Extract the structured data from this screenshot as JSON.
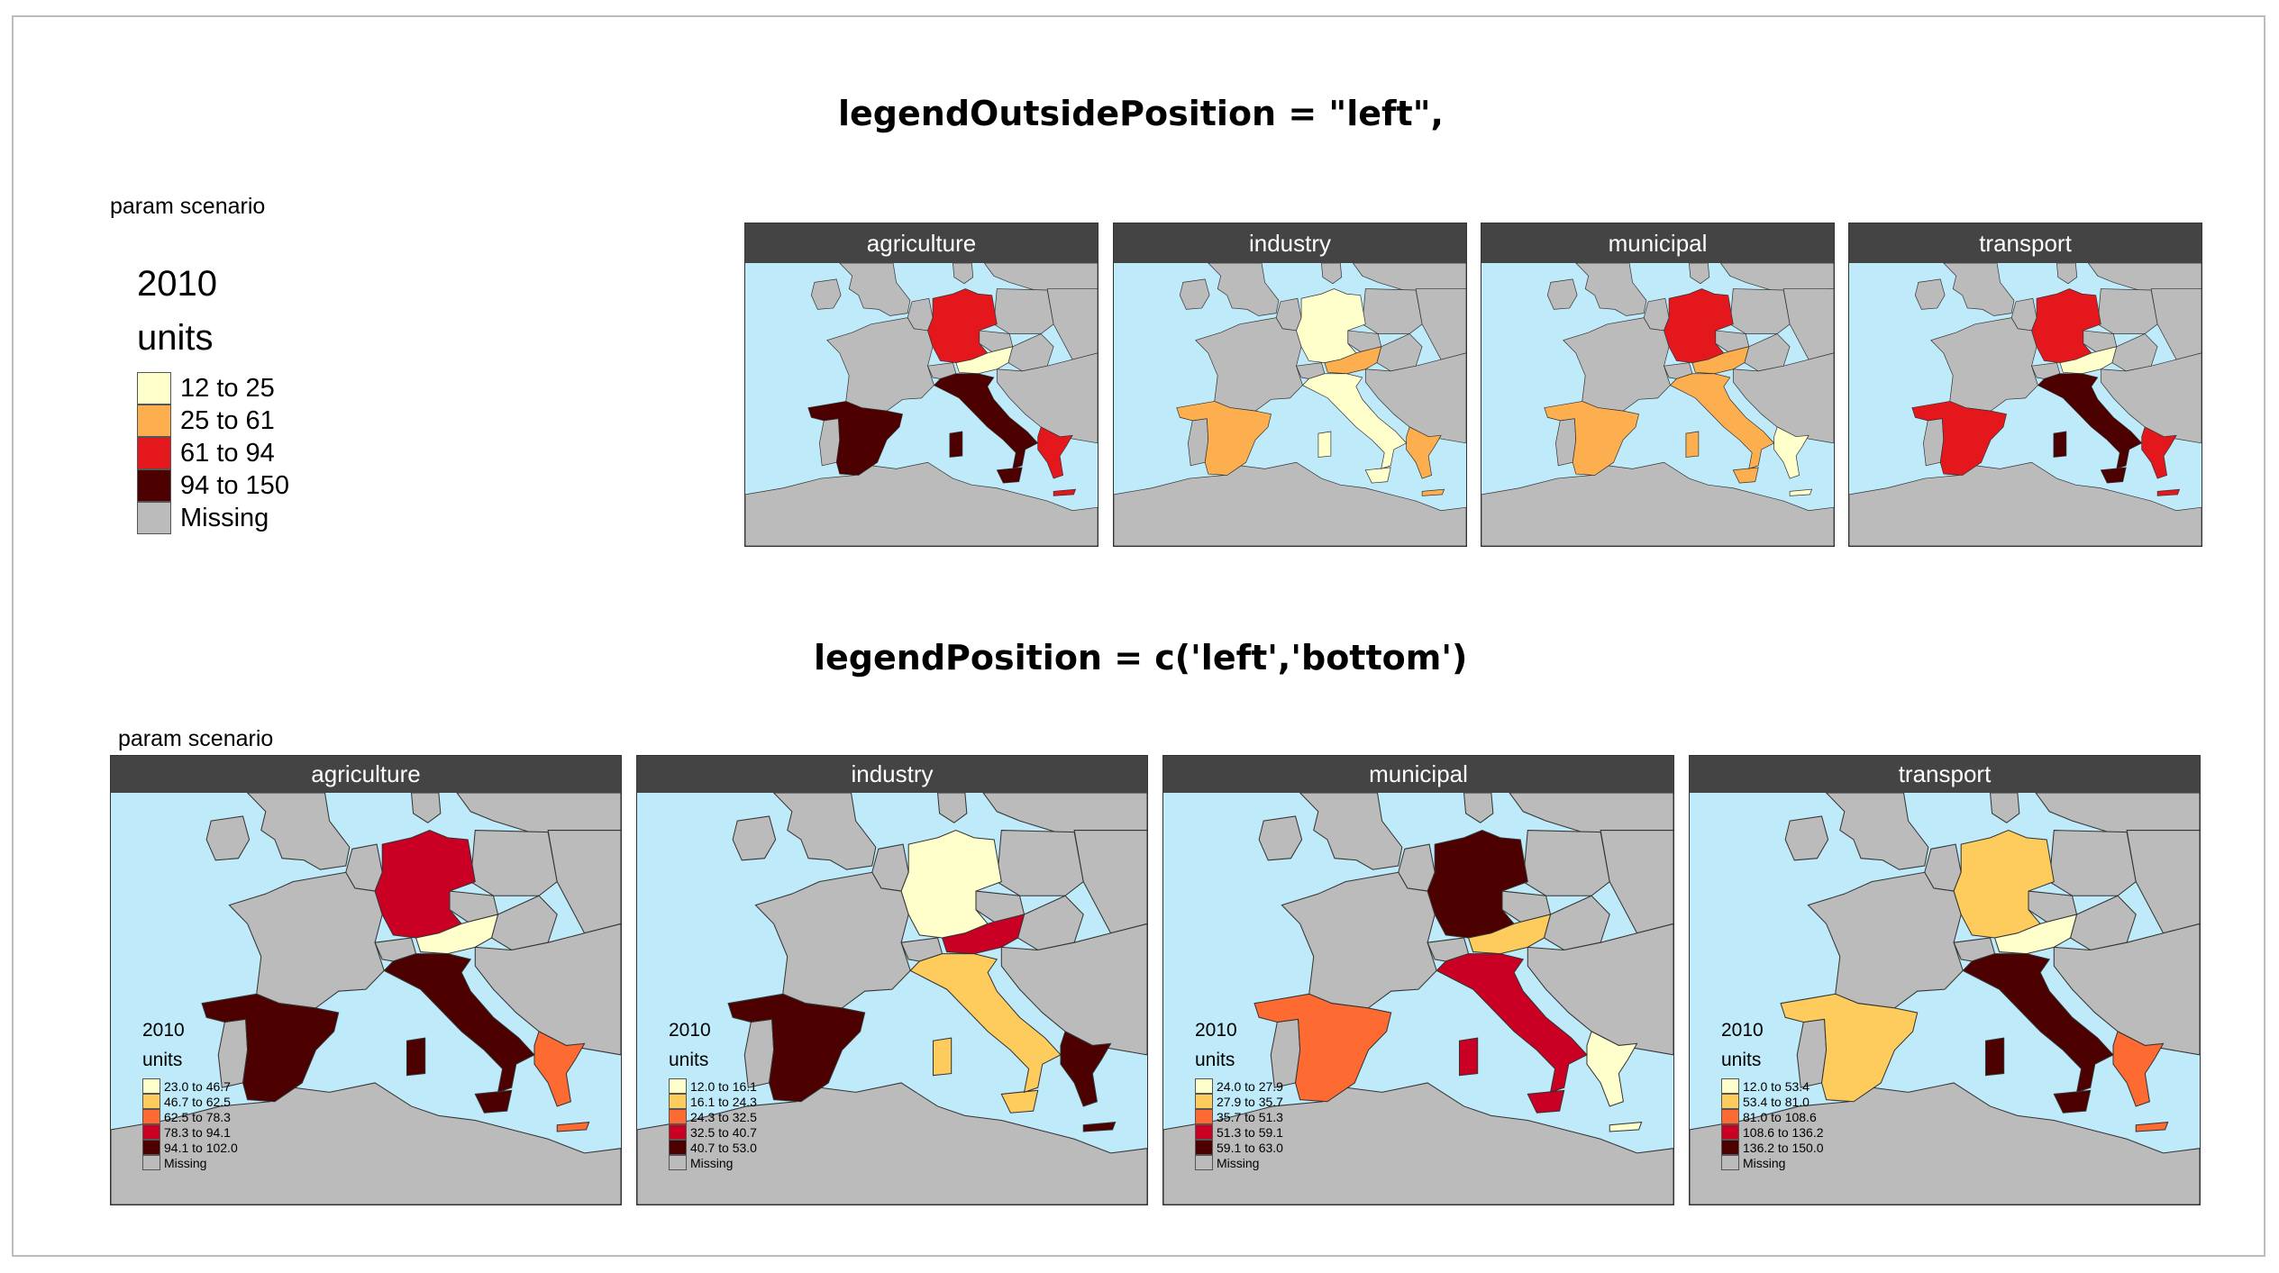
{
  "heading_top": "legendOutsidePosition = \"left\",",
  "heading_bottom": "legendPosition =  c('left','bottom')",
  "param_label": "param scenario",
  "missing_color": "#bbbbbb",
  "sea_color": "#bfeafa",
  "land_color": "#bbbbbb",
  "top_legend": {
    "year": "2010",
    "units": "units",
    "classes": [
      {
        "label": "12 to 25",
        "color": "#ffffcc"
      },
      {
        "label": "25 to 61",
        "color": "#fdae4f"
      },
      {
        "label": "61 to 94",
        "color": "#e3171c"
      },
      {
        "label": "94 to 150",
        "color": "#4c0000"
      },
      {
        "label": "Missing",
        "color": "#bbbbbb"
      }
    ],
    "panels": [
      {
        "name": "agriculture",
        "values": {
          "Germany": "61 to 94",
          "Austria": "12 to 25",
          "Italy": "94 to 150",
          "Spain": "94 to 150",
          "Greece": "61 to 94"
        }
      },
      {
        "name": "industry",
        "values": {
          "Germany": "12 to 25",
          "Austria": "25 to 61",
          "Italy": "12 to 25",
          "Spain": "25 to 61",
          "Greece": "25 to 61"
        }
      },
      {
        "name": "municipal",
        "values": {
          "Germany": "61 to 94",
          "Austria": "25 to 61",
          "Italy": "25 to 61",
          "Spain": "25 to 61",
          "Greece": "12 to 25"
        }
      },
      {
        "name": "transport",
        "values": {
          "Germany": "61 to 94",
          "Austria": "12 to 25",
          "Italy": "94 to 150",
          "Spain": "61 to 94",
          "Greece": "61 to 94"
        }
      }
    ]
  },
  "bottom_panels": [
    {
      "name": "agriculture",
      "year": "2010",
      "units": "units",
      "classes": [
        {
          "label": "23.0 to 46.7",
          "color": "#ffffcc"
        },
        {
          "label": "46.7 to 62.5",
          "color": "#fecc5c"
        },
        {
          "label": "62.5 to 78.3",
          "color": "#fd6a32"
        },
        {
          "label": "78.3 to 94.1",
          "color": "#c90024"
        },
        {
          "label": "94.1 to 102.0",
          "color": "#4c0000"
        },
        {
          "label": "Missing",
          "color": "#bbbbbb"
        }
      ],
      "values": {
        "Germany": "78.3 to 94.1",
        "Austria": "23.0 to 46.7",
        "Italy": "94.1 to 102.0",
        "Spain": "94.1 to 102.0",
        "Greece": "62.5 to 78.3"
      }
    },
    {
      "name": "industry",
      "year": "2010",
      "units": "units",
      "classes": [
        {
          "label": "12.0 to 16.1",
          "color": "#ffffcc"
        },
        {
          "label": "16.1 to 24.3",
          "color": "#fecc5c"
        },
        {
          "label": "24.3 to 32.5",
          "color": "#fd6a32"
        },
        {
          "label": "32.5 to 40.7",
          "color": "#c90024"
        },
        {
          "label": "40.7 to 53.0",
          "color": "#4c0000"
        },
        {
          "label": "Missing",
          "color": "#bbbbbb"
        }
      ],
      "values": {
        "Germany": "12.0 to 16.1",
        "Austria": "32.5 to 40.7",
        "Italy": "16.1 to 24.3",
        "Spain": "40.7 to 53.0",
        "Greece": "40.7 to 53.0"
      }
    },
    {
      "name": "municipal",
      "year": "2010",
      "units": "units",
      "classes": [
        {
          "label": "24.0 to 27.9",
          "color": "#ffffcc"
        },
        {
          "label": "27.9 to 35.7",
          "color": "#fecc5c"
        },
        {
          "label": "35.7 to 51.3",
          "color": "#fd6a32"
        },
        {
          "label": "51.3 to 59.1",
          "color": "#c90024"
        },
        {
          "label": "59.1 to 63.0",
          "color": "#4c0000"
        },
        {
          "label": "Missing",
          "color": "#bbbbbb"
        }
      ],
      "values": {
        "Germany": "59.1 to 63.0",
        "Austria": "27.9 to 35.7",
        "Italy": "51.3 to 59.1",
        "Spain": "35.7 to 51.3",
        "Greece": "24.0 to 27.9"
      }
    },
    {
      "name": "transport",
      "year": "2010",
      "units": "units",
      "classes": [
        {
          "label": "12.0 to 53.4",
          "color": "#ffffcc"
        },
        {
          "label": "53.4 to 81.0",
          "color": "#fecc5c"
        },
        {
          "label": "81.0 to 108.6",
          "color": "#fd6a32"
        },
        {
          "label": "108.6 to 136.2",
          "color": "#c90024"
        },
        {
          "label": "136.2 to 150.0",
          "color": "#4c0000"
        },
        {
          "label": "Missing",
          "color": "#bbbbbb"
        }
      ],
      "values": {
        "Germany": "53.4 to 81.0",
        "Austria": "12.0 to 53.4",
        "Italy": "136.2 to 150.0",
        "Spain": "53.4 to 81.0",
        "Greece": "81.0 to 108.6"
      }
    }
  ]
}
